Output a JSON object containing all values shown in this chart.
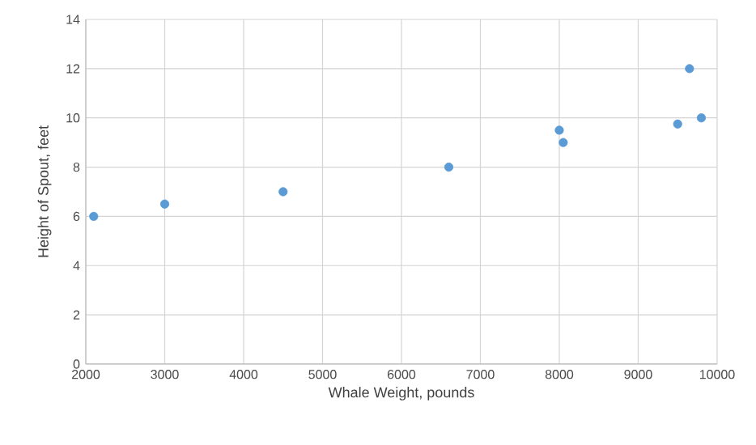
{
  "chart_data": {
    "type": "scatter",
    "xlabel": "Whale Weight, pounds",
    "ylabel": "Height of Spout, feet",
    "x": [
      2100,
      3000,
      4500,
      6600,
      8000,
      8050,
      9500,
      9650,
      9800
    ],
    "values": [
      6,
      6.5,
      7,
      8,
      9.5,
      9,
      9.75,
      12,
      10
    ],
    "color": "#5b9bd5",
    "marker": "circle",
    "xlim": [
      2000,
      10000
    ],
    "xticks": [
      2000,
      3000,
      4000,
      5000,
      6000,
      7000,
      8000,
      9000,
      10000
    ],
    "ylim": [
      0,
      14
    ],
    "yticks": [
      0,
      2,
      4,
      6,
      8,
      10,
      12,
      14
    ],
    "grid": true
  }
}
